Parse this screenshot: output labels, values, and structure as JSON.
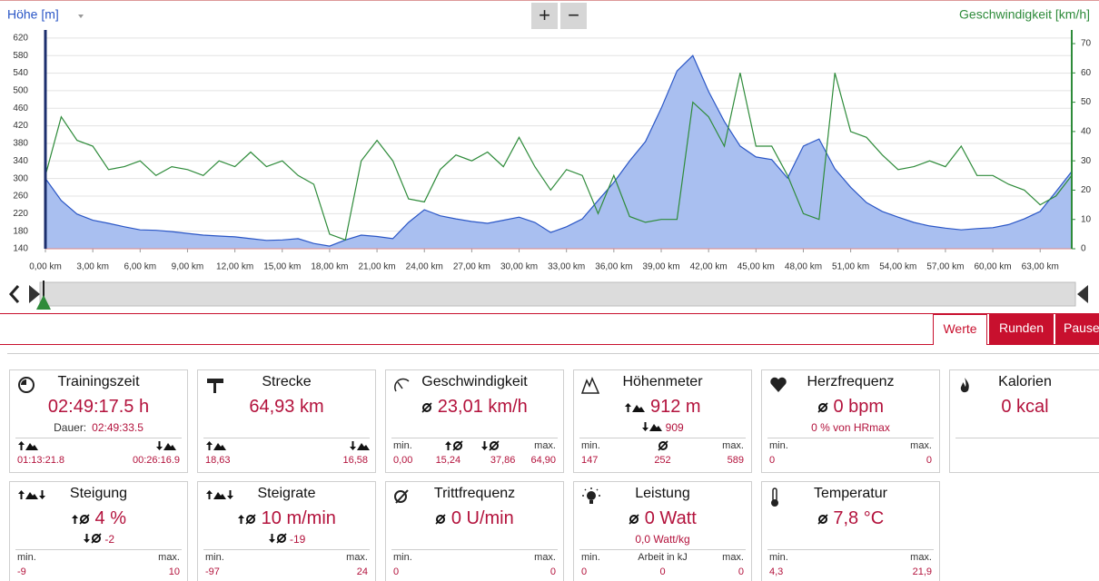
{
  "chart_data": {
    "type": "area-line",
    "ylabel": "Höhe [m]",
    "y2label": "Geschwindigkeit [km/h]",
    "x": [
      0,
      1,
      2,
      3,
      4,
      5,
      6,
      7,
      8,
      9,
      10,
      11,
      12,
      13,
      14,
      15,
      16,
      17,
      18,
      19,
      20,
      21,
      22,
      23,
      24,
      25,
      26,
      27,
      28,
      29,
      30,
      31,
      32,
      33,
      34,
      35,
      36,
      37,
      38,
      39,
      40,
      41,
      42,
      43,
      44,
      45,
      46,
      47,
      48,
      49,
      50,
      51,
      52,
      53,
      54,
      55,
      56,
      57,
      58,
      59,
      60,
      61,
      62,
      63,
      64,
      65
    ],
    "xlim": [
      0,
      65
    ],
    "xticks": [
      {
        "value": 0,
        "label": "0,00 km"
      },
      {
        "value": 3,
        "label": "3,00 km"
      },
      {
        "value": 6,
        "label": "6,00 km"
      },
      {
        "value": 9,
        "label": "9,00 km"
      },
      {
        "value": 12,
        "label": "12,00 km"
      },
      {
        "value": 15,
        "label": "15,00 km"
      },
      {
        "value": 18,
        "label": "18,00 km"
      },
      {
        "value": 21,
        "label": "21,00 km"
      },
      {
        "value": 24,
        "label": "24,00 km"
      },
      {
        "value": 27,
        "label": "27,00 km"
      },
      {
        "value": 30,
        "label": "30,00 km"
      },
      {
        "value": 33,
        "label": "33,00 km"
      },
      {
        "value": 36,
        "label": "36,00 km"
      },
      {
        "value": 39,
        "label": "39,00 km"
      },
      {
        "value": 42,
        "label": "42,00 km"
      },
      {
        "value": 45,
        "label": "45,00 km"
      },
      {
        "value": 48,
        "label": "48,00 km"
      },
      {
        "value": 51,
        "label": "51,00 km"
      },
      {
        "value": 54,
        "label": "54,00 km"
      },
      {
        "value": 57,
        "label": "57,00 km"
      },
      {
        "value": 60,
        "label": "60,00 km"
      },
      {
        "value": 63,
        "label": "63,00 km"
      }
    ],
    "ylim": [
      140,
      626
    ],
    "yticks": [
      140,
      180,
      220,
      260,
      300,
      340,
      380,
      420,
      460,
      500,
      540,
      580,
      620
    ],
    "y2lim": [
      0,
      72.8
    ],
    "y2ticks": [
      0,
      10,
      20,
      30,
      40,
      50,
      60,
      70
    ],
    "grid": true,
    "series": [
      {
        "name": "Höhe",
        "color": "#2a56c6",
        "fill": "#a9bff0",
        "values": [
          300,
          250,
          219,
          205,
          198,
          190,
          183,
          182,
          179,
          175,
          171,
          169,
          167,
          163,
          159,
          160,
          163,
          152,
          146,
          160,
          171,
          168,
          163,
          200,
          229,
          215,
          208,
          202,
          198,
          205,
          212,
          200,
          177,
          190,
          208,
          250,
          291,
          340,
          384,
          460,
          545,
          580,
          498,
          430,
          374,
          349,
          343,
          301,
          374,
          390,
          322,
          280,
          245,
          225,
          212,
          200,
          192,
          187,
          183,
          186,
          188,
          195,
          208,
          225,
          270,
          316
        ]
      },
      {
        "name": "Geschwindigkeit",
        "color": "#2e8b3a",
        "axis": "y2",
        "values": [
          25,
          45,
          37,
          35,
          27,
          28,
          30,
          25,
          28,
          27,
          25,
          30,
          28,
          33,
          28,
          30,
          25,
          22,
          5,
          3,
          30,
          37,
          30,
          17,
          16,
          27,
          32,
          30,
          33,
          28,
          38,
          28,
          20,
          27,
          25,
          12,
          25,
          11,
          9,
          10,
          10,
          50,
          45,
          35,
          60,
          35,
          35,
          25,
          12,
          10,
          60,
          40,
          38,
          32,
          27,
          28,
          30,
          28,
          35,
          25,
          25,
          22,
          20,
          15,
          18,
          25
        ]
      }
    ]
  },
  "controls": {
    "zoom_in": "+",
    "zoom_out": "−"
  },
  "tabs": [
    "Werte",
    "Runden",
    "Pause"
  ],
  "cards": [
    {
      "title": "Trainingszeit",
      "value": "02:49:17.5 h",
      "sub_label": "Dauer:",
      "sub": "02:49:33.5",
      "footer": [
        "01:13:21.8",
        "00:26:16.9"
      ]
    },
    {
      "title": "Strecke",
      "value": "64,93 km",
      "footer": [
        "18,63",
        "16,58"
      ]
    },
    {
      "title": "Geschwindigkeit",
      "value": "23,01 km/h",
      "footer_labels": [
        "min.",
        "max."
      ],
      "footer": [
        "0,00",
        "15,24",
        "37,86",
        "64,90"
      ]
    },
    {
      "title": "Höhenmeter",
      "value": "912 m",
      "sub": "909",
      "footer_labels": [
        "min.",
        "max."
      ],
      "footer": [
        "147",
        "252",
        "589"
      ]
    },
    {
      "title": "Herzfrequenz",
      "value": "0 bpm",
      "sub": "0 % von HRmax",
      "footer_labels": [
        "min.",
        "max."
      ],
      "footer": [
        "0",
        "0"
      ]
    },
    {
      "title": "Kalorien",
      "value": "0 kcal"
    },
    {
      "title": "Steigung",
      "value": "4 %",
      "sub": "-2",
      "footer_labels": [
        "min.",
        "max."
      ],
      "footer": [
        "-9",
        "10"
      ]
    },
    {
      "title": "Steigrate",
      "value": "10 m/min",
      "sub": "-19",
      "footer_labels": [
        "min.",
        "max."
      ],
      "footer": [
        "-97",
        "24"
      ]
    },
    {
      "title": "Trittfrequenz",
      "value": "0 U/min",
      "footer_labels": [
        "min.",
        "max."
      ],
      "footer": [
        "0",
        "0"
      ]
    },
    {
      "title": "Leistung",
      "value": "0 Watt",
      "sub": "0,0 Watt/kg",
      "footer_labels": [
        "min.",
        "Arbeit in kJ",
        "max."
      ],
      "footer": [
        "0",
        "0",
        "0"
      ]
    },
    {
      "title": "Temperatur",
      "value": "7,8 °C",
      "footer_labels": [
        "min.",
        "max."
      ],
      "footer": [
        "4,3",
        "21,9"
      ]
    }
  ]
}
